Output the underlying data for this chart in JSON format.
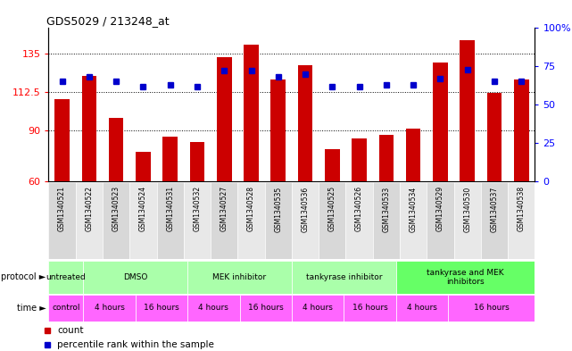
{
  "title": "GDS5029 / 213248_at",
  "samples": [
    "GSM1340521",
    "GSM1340522",
    "GSM1340523",
    "GSM1340524",
    "GSM1340531",
    "GSM1340532",
    "GSM1340527",
    "GSM1340528",
    "GSM1340535",
    "GSM1340536",
    "GSM1340525",
    "GSM1340526",
    "GSM1340533",
    "GSM1340534",
    "GSM1340529",
    "GSM1340530",
    "GSM1340537",
    "GSM1340538"
  ],
  "bar_values": [
    108,
    122,
    97,
    77,
    86,
    83,
    133,
    140,
    120,
    128,
    79,
    85,
    87,
    91,
    130,
    143,
    112,
    120
  ],
  "percentile_values": [
    65,
    68,
    65,
    62,
    63,
    62,
    72,
    72,
    68,
    70,
    62,
    62,
    63,
    63,
    67,
    73,
    65,
    65
  ],
  "bar_color": "#cc0000",
  "percentile_color": "#0000cc",
  "ylim_left": [
    60,
    150
  ],
  "ylim_right": [
    0,
    100
  ],
  "yticks_left": [
    60,
    90,
    112.5,
    135
  ],
  "yticks_right": [
    0,
    25,
    50,
    75,
    100
  ],
  "prot_groups": [
    [
      0,
      2,
      "untreated",
      "#aaffaa"
    ],
    [
      2,
      8,
      "DMSO",
      "#aaffaa"
    ],
    [
      8,
      14,
      "MEK inhibitor",
      "#aaffaa"
    ],
    [
      14,
      20,
      "tankyrase inhibitor",
      "#aaffaa"
    ],
    [
      20,
      28,
      "tankyrase and MEK\ninhibitors",
      "#66ff66"
    ]
  ],
  "time_groups": [
    [
      0,
      2,
      "control"
    ],
    [
      2,
      5,
      "4 hours"
    ],
    [
      5,
      8,
      "16 hours"
    ],
    [
      8,
      11,
      "4 hours"
    ],
    [
      11,
      14,
      "16 hours"
    ],
    [
      14,
      17,
      "4 hours"
    ],
    [
      17,
      20,
      "16 hours"
    ],
    [
      20,
      23,
      "4 hours"
    ],
    [
      23,
      28,
      "16 hours"
    ]
  ],
  "time_color": "#ff66ff"
}
